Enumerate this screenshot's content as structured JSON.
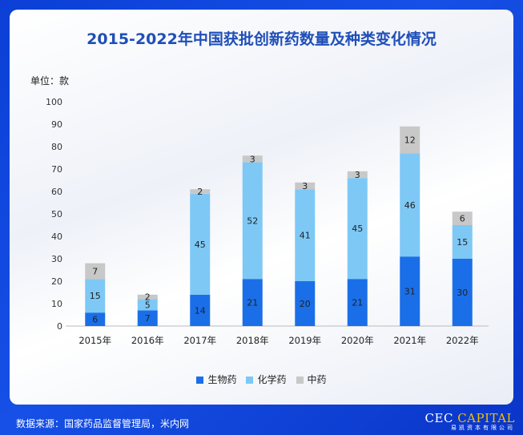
{
  "title": "2015-2022年中国获批创新药数量及种类变化情况",
  "unit_label": "单位：款",
  "footer": {
    "source": "数据来源：国家药品监督管理局，米内网",
    "brand_part1": "CEC ",
    "brand_part2": "CAPITAL",
    "brand_sub": "易凯资本有限公司"
  },
  "chart_data": {
    "type": "bar",
    "stacked": true,
    "categories": [
      "2015年",
      "2016年",
      "2017年",
      "2018年",
      "2019年",
      "2020年",
      "2021年",
      "2022年"
    ],
    "series": [
      {
        "name": "生物药",
        "color": "#1a6fe8",
        "values": [
          6,
          7,
          14,
          21,
          20,
          21,
          31,
          30
        ]
      },
      {
        "name": "化学药",
        "color": "#7ec8f5",
        "values": [
          15,
          5,
          45,
          52,
          41,
          45,
          46,
          15
        ]
      },
      {
        "name": "中药",
        "color": "#c8c8c8",
        "values": [
          7,
          2,
          2,
          3,
          3,
          3,
          12,
          6
        ]
      }
    ],
    "ylim": [
      0,
      100
    ],
    "yticks": [
      0,
      10,
      20,
      30,
      40,
      50,
      60,
      70,
      80,
      90,
      100
    ],
    "legend_position": "bottom",
    "grid": false
  }
}
